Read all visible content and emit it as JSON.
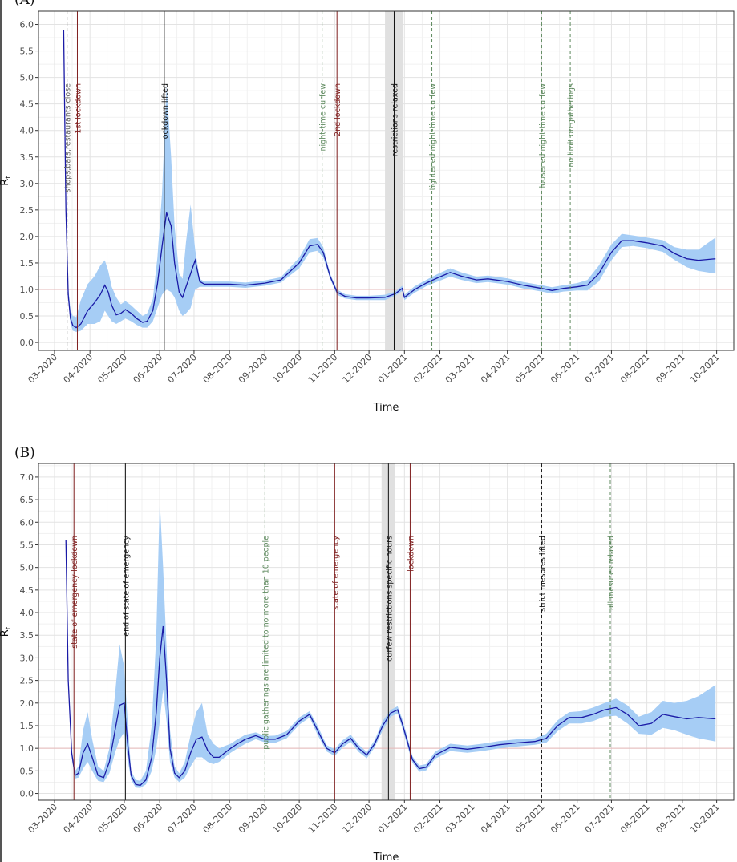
{
  "colors": {
    "line": "#1a1aa6",
    "band": "#a6cdf5",
    "reference": "#e6b8b8",
    "grid_major": "#e3e3e3",
    "grid_minor": "#f1f1f1",
    "shade": "#e0e0e0",
    "red_event": "#7f1f1f",
    "black_event": "#111111",
    "green_event": "#5f8a5f",
    "gray_event": "#666666"
  },
  "chart_data": [
    {
      "type": "line",
      "panel_tag": "(A)",
      "xlabel": "Time",
      "ylabel": "R",
      "ylabel_sub": "t",
      "x_ticks": [
        "03-2020",
        "04-2020",
        "05-2020",
        "06-2020",
        "07-2020",
        "08-2020",
        "09-2020",
        "10-2020",
        "11-2020",
        "12-2020",
        "01-2021",
        "02-2021",
        "03-2021",
        "04-2021",
        "05-2021",
        "06-2021",
        "07-2021",
        "08-2021",
        "09-2021",
        "10-2021"
      ],
      "xlim": [
        "2020-02-16",
        "2021-10-16"
      ],
      "ylim": [
        -0.15,
        6.25
      ],
      "y_ticks": [
        0.0,
        0.5,
        1.0,
        1.5,
        2.0,
        2.5,
        3.0,
        3.5,
        4.0,
        4.5,
        5.0,
        5.5,
        6.0
      ],
      "y_tick_labels": [
        "0.0",
        "0.5",
        "1.0",
        "1.5",
        "2.0",
        "2.5",
        "3.0",
        "3.5",
        "4.0",
        "4.5",
        "5.0",
        "5.5",
        "6.0"
      ],
      "reference_line": 1.0,
      "grid": true,
      "shaded_periods": [
        [
          "2020-12-15",
          "2020-12-31"
        ]
      ],
      "events": [
        {
          "date": "2020-03-12",
          "label": "shops,bars,restaurants close",
          "color": "gray",
          "dashed": true
        },
        {
          "date": "2020-03-21",
          "label": "1st lockdown",
          "color": "red",
          "dashed": false
        },
        {
          "date": "2020-06-05",
          "label": "lockdown lifted",
          "color": "black",
          "dashed": false
        },
        {
          "date": "2020-10-21",
          "label": "night-time curfew",
          "color": "green",
          "dashed": true
        },
        {
          "date": "2020-11-03",
          "label": "2nd lockdown",
          "color": "red",
          "dashed": false
        },
        {
          "date": "2020-12-23",
          "label": "restrictions relaxed",
          "color": "black",
          "dashed": false,
          "shaded": true
        },
        {
          "date": "2021-01-25",
          "label": "tightened night-time curfew",
          "color": "green",
          "dashed": true
        },
        {
          "date": "2021-05-01",
          "label": "loosened night-time curfew",
          "color": "green",
          "dashed": true
        },
        {
          "date": "2021-05-26",
          "label": "no limit on gatherings",
          "color": "green",
          "dashed": true
        }
      ],
      "series": [
        {
          "x": [
            "2020-03-09",
            "2020-03-11",
            "2020-03-13",
            "2020-03-15",
            "2020-03-17",
            "2020-03-20",
            "2020-03-24",
            "2020-03-30",
            "2020-04-05",
            "2020-04-10",
            "2020-04-14",
            "2020-04-17",
            "2020-04-20",
            "2020-04-24",
            "2020-04-28",
            "2020-05-02",
            "2020-05-07",
            "2020-05-12",
            "2020-05-17",
            "2020-05-21",
            "2020-05-26",
            "2020-05-30",
            "2020-06-03",
            "2020-06-07",
            "2020-06-11",
            "2020-06-14",
            "2020-06-18",
            "2020-06-21",
            "2020-06-24",
            "2020-06-28",
            "2020-07-02",
            "2020-07-06",
            "2020-07-10",
            "2020-07-20",
            "2020-08-01",
            "2020-08-15",
            "2020-09-01",
            "2020-09-15",
            "2020-10-01",
            "2020-10-10",
            "2020-10-17",
            "2020-10-22",
            "2020-10-28",
            "2020-11-03",
            "2020-11-10",
            "2020-11-20",
            "2020-12-01",
            "2020-12-15",
            "2020-12-24",
            "2020-12-30",
            "2021-01-01",
            "2021-01-10",
            "2021-01-20",
            "2021-01-30",
            "2021-02-10",
            "2021-02-20",
            "2021-03-05",
            "2021-03-15",
            "2021-04-01",
            "2021-04-15",
            "2021-05-01",
            "2021-05-10",
            "2021-05-20",
            "2021-06-01",
            "2021-06-10",
            "2021-06-20",
            "2021-07-01",
            "2021-07-10",
            "2021-07-20",
            "2021-08-01",
            "2021-08-15",
            "2021-08-25",
            "2021-09-05",
            "2021-09-15",
            "2021-09-30"
          ],
          "values": [
            5.9,
            2.5,
            0.9,
            0.45,
            0.32,
            0.28,
            0.35,
            0.6,
            0.75,
            0.9,
            1.08,
            0.95,
            0.7,
            0.52,
            0.55,
            0.62,
            0.55,
            0.45,
            0.38,
            0.4,
            0.6,
            1.1,
            1.8,
            2.45,
            2.2,
            1.5,
            0.95,
            0.85,
            1.05,
            1.3,
            1.55,
            1.15,
            1.1,
            1.1,
            1.1,
            1.08,
            1.12,
            1.18,
            1.5,
            1.82,
            1.85,
            1.7,
            1.25,
            0.95,
            0.87,
            0.84,
            0.84,
            0.85,
            0.92,
            1.02,
            0.85,
            1.0,
            1.12,
            1.22,
            1.32,
            1.25,
            1.18,
            1.2,
            1.15,
            1.08,
            1.02,
            0.98,
            1.02,
            1.05,
            1.08,
            1.3,
            1.7,
            1.92,
            1.92,
            1.88,
            1.82,
            1.68,
            1.58,
            1.55,
            1.58
          ],
          "upper": [
            5.9,
            2.6,
            1.05,
            0.62,
            0.5,
            0.48,
            0.8,
            1.1,
            1.25,
            1.45,
            1.55,
            1.35,
            1.05,
            0.85,
            0.72,
            0.78,
            0.7,
            0.6,
            0.5,
            0.55,
            0.82,
            1.6,
            2.8,
            4.85,
            3.5,
            2.2,
            1.3,
            1.2,
            1.9,
            2.6,
            1.75,
            1.2,
            1.15,
            1.15,
            1.15,
            1.13,
            1.17,
            1.23,
            1.6,
            1.95,
            1.97,
            1.8,
            1.3,
            1.0,
            0.91,
            0.88,
            0.88,
            0.9,
            0.96,
            1.07,
            0.9,
            1.06,
            1.18,
            1.29,
            1.4,
            1.32,
            1.24,
            1.26,
            1.21,
            1.14,
            1.08,
            1.04,
            1.08,
            1.12,
            1.18,
            1.45,
            1.85,
            2.05,
            2.02,
            1.98,
            1.93,
            1.8,
            1.75,
            1.75,
            1.98
          ],
          "lower": [
            5.9,
            2.4,
            0.8,
            0.35,
            0.22,
            0.2,
            0.22,
            0.35,
            0.35,
            0.4,
            0.6,
            0.5,
            0.4,
            0.35,
            0.4,
            0.45,
            0.4,
            0.33,
            0.28,
            0.28,
            0.4,
            0.65,
            0.9,
            1.0,
            0.95,
            0.85,
            0.6,
            0.5,
            0.55,
            0.65,
            1.0,
            1.05,
            1.05,
            1.05,
            1.05,
            1.03,
            1.07,
            1.13,
            1.4,
            1.7,
            1.73,
            1.6,
            1.2,
            0.9,
            0.83,
            0.8,
            0.8,
            0.8,
            0.88,
            0.97,
            0.8,
            0.94,
            1.06,
            1.15,
            1.24,
            1.18,
            1.12,
            1.14,
            1.09,
            1.02,
            0.96,
            0.92,
            0.96,
            0.98,
            0.98,
            1.15,
            1.55,
            1.8,
            1.82,
            1.78,
            1.71,
            1.56,
            1.42,
            1.35,
            1.3
          ]
        }
      ]
    },
    {
      "type": "line",
      "panel_tag": "(B)",
      "xlabel": "Time",
      "ylabel": "R",
      "ylabel_sub": "t",
      "x_ticks": [
        "03-2020",
        "04-2020",
        "05-2020",
        "06-2020",
        "07-2020",
        "08-2020",
        "09-2020",
        "10-2020",
        "11-2020",
        "12-2020",
        "01-2021",
        "02-2021",
        "03-2021",
        "04-2021",
        "05-2021",
        "06-2021",
        "07-2021",
        "08-2021",
        "09-2021",
        "10-2021"
      ],
      "xlim": [
        "2020-02-16",
        "2021-10-16"
      ],
      "ylim": [
        -0.15,
        7.3
      ],
      "y_ticks": [
        0.0,
        0.5,
        1.0,
        1.5,
        2.0,
        2.5,
        3.0,
        3.5,
        4.0,
        4.5,
        5.0,
        5.5,
        6.0,
        6.5,
        7.0
      ],
      "y_tick_labels": [
        "0.0",
        "0.5",
        "1.0",
        "1.5",
        "2.0",
        "2.5",
        "3.0",
        "3.5",
        "4.0",
        "4.5",
        "5.0",
        "5.5",
        "6.0",
        "6.5",
        "7.0"
      ],
      "reference_line": 1.0,
      "grid": true,
      "shaded_periods": [
        [
          "2020-12-12",
          "2020-12-24"
        ]
      ],
      "events": [
        {
          "date": "2020-03-18",
          "label": "state of emergency-lockdown",
          "color": "red",
          "dashed": false
        },
        {
          "date": "2020-05-02",
          "label": "end of state of emergency",
          "color": "black",
          "dashed": false
        },
        {
          "date": "2020-09-01",
          "label": "public gatherings are limited to no more than 10 people",
          "color": "green",
          "dashed": true
        },
        {
          "date": "2020-11-01",
          "label": "state of emergency",
          "color": "red",
          "dashed": false
        },
        {
          "date": "2020-12-18",
          "label": "curfew restrictions specific hours",
          "color": "black",
          "dashed": false,
          "shaded": true
        },
        {
          "date": "2021-01-06",
          "label": "lockdown",
          "color": "red",
          "dashed": false
        },
        {
          "date": "2021-05-01",
          "label": "strict mesures lifted",
          "color": "black",
          "dashed": true
        },
        {
          "date": "2021-06-30",
          "label": "all mesures relaxed",
          "color": "green",
          "dashed": true
        }
      ],
      "series": [
        {
          "x": [
            "2020-03-11",
            "2020-03-13",
            "2020-03-16",
            "2020-03-19",
            "2020-03-22",
            "2020-03-26",
            "2020-03-30",
            "2020-04-03",
            "2020-04-08",
            "2020-04-13",
            "2020-04-18",
            "2020-04-23",
            "2020-04-27",
            "2020-05-01",
            "2020-05-04",
            "2020-05-07",
            "2020-05-11",
            "2020-05-15",
            "2020-05-20",
            "2020-05-25",
            "2020-05-29",
            "2020-06-01",
            "2020-06-04",
            "2020-06-07",
            "2020-06-10",
            "2020-06-14",
            "2020-06-18",
            "2020-06-23",
            "2020-06-28",
            "2020-07-03",
            "2020-07-08",
            "2020-07-13",
            "2020-07-18",
            "2020-07-23",
            "2020-07-28",
            "2020-08-02",
            "2020-08-08",
            "2020-08-15",
            "2020-08-24",
            "2020-09-01",
            "2020-09-10",
            "2020-09-20",
            "2020-10-01",
            "2020-10-10",
            "2020-10-17",
            "2020-10-25",
            "2020-11-01",
            "2020-11-08",
            "2020-11-15",
            "2020-11-22",
            "2020-11-29",
            "2020-12-06",
            "2020-12-13",
            "2020-12-20",
            "2020-12-26",
            "2020-12-30",
            "2021-01-03",
            "2021-01-08",
            "2021-01-14",
            "2021-01-20",
            "2021-01-28",
            "2021-02-10",
            "2021-02-25",
            "2021-03-10",
            "2021-03-25",
            "2021-04-10",
            "2021-04-25",
            "2021-05-05",
            "2021-05-15",
            "2021-05-25",
            "2021-06-05",
            "2021-06-15",
            "2021-06-25",
            "2021-07-05",
            "2021-07-15",
            "2021-07-25",
            "2021-08-05",
            "2021-08-15",
            "2021-08-25",
            "2021-09-05",
            "2021-09-15",
            "2021-09-30"
          ],
          "values": [
            5.6,
            2.5,
            0.9,
            0.4,
            0.45,
            0.9,
            1.1,
            0.8,
            0.4,
            0.35,
            0.7,
            1.4,
            1.95,
            2.0,
            1.1,
            0.4,
            0.2,
            0.18,
            0.3,
            0.8,
            1.8,
            3.0,
            3.7,
            2.5,
            1.0,
            0.45,
            0.35,
            0.5,
            0.9,
            1.2,
            1.25,
            0.95,
            0.8,
            0.8,
            0.9,
            1.0,
            1.1,
            1.2,
            1.28,
            1.2,
            1.2,
            1.3,
            1.6,
            1.75,
            1.4,
            1.0,
            0.9,
            1.1,
            1.22,
            1.0,
            0.85,
            1.1,
            1.5,
            1.78,
            1.85,
            1.55,
            1.2,
            0.75,
            0.55,
            0.58,
            0.85,
            1.02,
            0.98,
            1.02,
            1.08,
            1.12,
            1.15,
            1.22,
            1.5,
            1.68,
            1.68,
            1.75,
            1.85,
            1.9,
            1.75,
            1.5,
            1.55,
            1.75,
            1.7,
            1.65,
            1.68,
            1.65
          ],
          "upper": [
            5.6,
            2.6,
            1.0,
            0.5,
            0.6,
            1.4,
            1.8,
            1.2,
            0.6,
            0.5,
            1.0,
            2.2,
            3.3,
            2.8,
            1.6,
            0.5,
            0.3,
            0.28,
            0.5,
            1.5,
            3.5,
            6.5,
            5.0,
            3.2,
            1.4,
            0.6,
            0.45,
            0.7,
            1.3,
            1.8,
            2.0,
            1.3,
            1.1,
            1.0,
            1.05,
            1.1,
            1.2,
            1.3,
            1.35,
            1.27,
            1.28,
            1.38,
            1.68,
            1.82,
            1.5,
            1.07,
            0.98,
            1.18,
            1.3,
            1.08,
            0.92,
            1.18,
            1.6,
            1.85,
            1.93,
            1.65,
            1.3,
            0.82,
            0.62,
            0.65,
            0.93,
            1.1,
            1.06,
            1.1,
            1.16,
            1.2,
            1.22,
            1.32,
            1.62,
            1.8,
            1.82,
            1.9,
            2.0,
            2.1,
            1.95,
            1.7,
            1.8,
            2.05,
            2.0,
            2.05,
            2.15,
            2.4
          ],
          "lower": [
            5.6,
            2.4,
            0.8,
            0.33,
            0.35,
            0.55,
            0.7,
            0.5,
            0.28,
            0.25,
            0.45,
            0.9,
            1.2,
            1.35,
            0.75,
            0.3,
            0.13,
            0.12,
            0.2,
            0.5,
            1.0,
            1.6,
            2.3,
            1.6,
            0.7,
            0.35,
            0.25,
            0.35,
            0.6,
            0.8,
            0.8,
            0.7,
            0.65,
            0.7,
            0.8,
            0.9,
            1.0,
            1.1,
            1.2,
            1.13,
            1.12,
            1.22,
            1.52,
            1.68,
            1.3,
            0.93,
            0.83,
            1.02,
            1.14,
            0.92,
            0.78,
            1.02,
            1.4,
            1.7,
            1.77,
            1.45,
            1.1,
            0.68,
            0.48,
            0.51,
            0.77,
            0.94,
            0.9,
            0.94,
            1.0,
            1.04,
            1.08,
            1.12,
            1.38,
            1.55,
            1.55,
            1.6,
            1.7,
            1.72,
            1.55,
            1.32,
            1.3,
            1.45,
            1.4,
            1.3,
            1.22,
            1.15
          ]
        }
      ]
    }
  ]
}
